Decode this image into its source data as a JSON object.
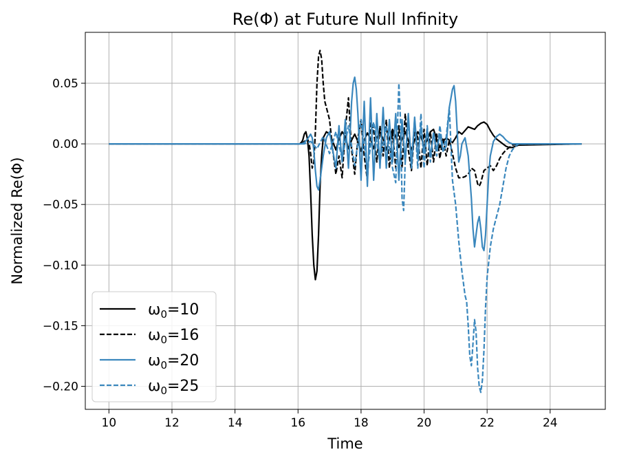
{
  "chart_data": {
    "type": "line",
    "title": "Re(Φ) at Future Null Infinity",
    "xlabel": "Time",
    "ylabel": "Normalized Re(Φ)",
    "xlim": [
      9.25,
      25.75
    ],
    "ylim": [
      -0.219,
      0.092
    ],
    "grid": true,
    "legend_placement": "lower-left",
    "x_ticks": [
      10,
      12,
      14,
      16,
      18,
      20,
      22,
      24
    ],
    "x_tick_labels": [
      "10",
      "12",
      "14",
      "16",
      "18",
      "20",
      "22",
      "24"
    ],
    "y_ticks": [
      0.05,
      0.0,
      -0.05,
      -0.1,
      -0.15,
      -0.2
    ],
    "y_tick_labels": [
      "0.05",
      "0.00",
      "−0.05",
      "−0.10",
      "−0.15",
      "−0.20"
    ],
    "series": [
      {
        "name": "ω₀=10",
        "legend_main": "ω",
        "legend_sub": "0",
        "legend_rest": "=10",
        "color": "#000000",
        "dash": "solid",
        "x": [
          10,
          16.0,
          16.05,
          16.1,
          16.15,
          16.2,
          16.25,
          16.3,
          16.35,
          16.4,
          16.45,
          16.5,
          16.55,
          16.6,
          16.65,
          16.7,
          16.75,
          16.8,
          16.9,
          17.0,
          17.1,
          17.2,
          17.3,
          17.4,
          17.5,
          17.6,
          17.7,
          17.8,
          17.9,
          18.0,
          18.1,
          18.2,
          18.3,
          18.4,
          18.5,
          18.6,
          18.7,
          18.8,
          18.9,
          19.0,
          19.1,
          19.2,
          19.3,
          19.4,
          19.5,
          19.6,
          19.7,
          19.8,
          19.9,
          20.0,
          20.1,
          20.2,
          20.3,
          20.4,
          20.5,
          20.6,
          20.7,
          20.8,
          20.9,
          21.0,
          21.1,
          21.2,
          21.3,
          21.4,
          21.5,
          21.6,
          21.7,
          21.8,
          21.9,
          22.0,
          22.1,
          22.2,
          22.3,
          22.4,
          22.5,
          22.6,
          22.7,
          22.8,
          22.9,
          23.0,
          25
        ],
        "y": [
          0,
          0,
          0.0,
          0.001,
          0.003,
          0.008,
          0.01,
          0.004,
          -0.01,
          -0.04,
          -0.075,
          -0.1,
          -0.112,
          -0.105,
          -0.075,
          -0.035,
          -0.01,
          0.005,
          0.01,
          0.008,
          0.002,
          -0.005,
          0.004,
          0.01,
          0.006,
          -0.004,
          0.003,
          0.008,
          0.002,
          -0.006,
          0.003,
          0.009,
          0.004,
          -0.004,
          0.005,
          0.01,
          0.004,
          -0.005,
          0.004,
          0.012,
          0.006,
          -0.003,
          0.004,
          0.01,
          0.003,
          -0.005,
          0.003,
          0.01,
          0.006,
          -0.002,
          0.003,
          0.01,
          0.012,
          0.004,
          -0.003,
          0.002,
          0.005,
          0.003,
          0.001,
          0.005,
          0.01,
          0.008,
          0.011,
          0.014,
          0.013,
          0.012,
          0.015,
          0.017,
          0.018,
          0.016,
          0.011,
          0.007,
          0.004,
          0.002,
          0.0,
          -0.002,
          -0.003,
          -0.003,
          -0.002,
          -0.001,
          0
        ]
      },
      {
        "name": "ω₀=16",
        "legend_main": "ω",
        "legend_sub": "0",
        "legend_rest": "=16",
        "color": "#000000",
        "dash": "dashed",
        "x": [
          10,
          16.0,
          16.1,
          16.2,
          16.3,
          16.35,
          16.4,
          16.45,
          16.5,
          16.55,
          16.6,
          16.65,
          16.7,
          16.75,
          16.8,
          16.85,
          16.9,
          17.0,
          17.1,
          17.2,
          17.3,
          17.4,
          17.5,
          17.6,
          17.7,
          17.8,
          17.9,
          18.0,
          18.1,
          18.2,
          18.3,
          18.4,
          18.5,
          18.6,
          18.7,
          18.8,
          18.9,
          19.0,
          19.1,
          19.2,
          19.3,
          19.4,
          19.5,
          19.6,
          19.7,
          19.8,
          19.9,
          20.0,
          20.1,
          20.2,
          20.3,
          20.4,
          20.5,
          20.6,
          20.7,
          20.8,
          20.9,
          21.0,
          21.1,
          21.2,
          21.3,
          21.4,
          21.5,
          21.6,
          21.7,
          21.75,
          21.8,
          21.9,
          22.0,
          22.1,
          22.2,
          22.3,
          22.4,
          22.5,
          22.6,
          22.7,
          22.8,
          22.9,
          23.0,
          25
        ],
        "y": [
          0,
          0,
          0.0,
          0.002,
          0.004,
          0.001,
          -0.008,
          -0.02,
          -0.015,
          0.01,
          0.05,
          0.072,
          0.077,
          0.07,
          0.05,
          0.035,
          0.03,
          0.02,
          -0.005,
          -0.025,
          -0.01,
          -0.028,
          0.012,
          0.038,
          -0.005,
          -0.025,
          0.005,
          0.02,
          -0.01,
          -0.03,
          0.018,
          0.012,
          -0.015,
          0.015,
          -0.01,
          0.02,
          -0.02,
          0.01,
          -0.02,
          0.015,
          -0.02,
          0.025,
          -0.005,
          -0.022,
          0.012,
          0.005,
          -0.02,
          0.012,
          -0.018,
          0.01,
          -0.015,
          0.008,
          -0.012,
          0.005,
          -0.01,
          0.003,
          -0.008,
          -0.02,
          -0.028,
          -0.028,
          -0.027,
          -0.025,
          -0.02,
          -0.022,
          -0.033,
          -0.035,
          -0.032,
          -0.022,
          -0.02,
          -0.018,
          -0.022,
          -0.018,
          -0.012,
          -0.008,
          -0.005,
          -0.003,
          -0.001,
          -0.0005,
          0.0,
          0
        ]
      },
      {
        "name": "ω₀=20",
        "legend_main": "ω",
        "legend_sub": "0",
        "legend_rest": "=20",
        "color": "#3a87bd",
        "dash": "solid",
        "x": [
          10,
          16.0,
          16.1,
          16.2,
          16.3,
          16.4,
          16.45,
          16.5,
          16.55,
          16.6,
          16.65,
          16.7,
          16.8,
          16.9,
          17.0,
          17.1,
          17.2,
          17.3,
          17.4,
          17.5,
          17.6,
          17.7,
          17.75,
          17.8,
          17.85,
          17.9,
          18.0,
          18.1,
          18.2,
          18.3,
          18.4,
          18.5,
          18.6,
          18.7,
          18.8,
          18.9,
          19.0,
          19.1,
          19.2,
          19.3,
          19.4,
          19.5,
          19.6,
          19.7,
          19.8,
          19.9,
          20.0,
          20.1,
          20.2,
          20.3,
          20.4,
          20.5,
          20.6,
          20.7,
          20.8,
          20.9,
          20.95,
          21.0,
          21.05,
          21.1,
          21.15,
          21.2,
          21.3,
          21.4,
          21.5,
          21.55,
          21.6,
          21.65,
          21.7,
          21.75,
          21.8,
          21.85,
          21.9,
          21.95,
          22.0,
          22.05,
          22.1,
          22.2,
          22.3,
          22.4,
          22.5,
          22.6,
          22.7,
          22.8,
          22.9,
          23.0,
          25
        ],
        "y": [
          0,
          0,
          0.0,
          0.001,
          0.004,
          0.008,
          0.005,
          -0.005,
          -0.022,
          -0.035,
          -0.038,
          -0.03,
          -0.01,
          0.005,
          0.01,
          -0.005,
          -0.02,
          0.015,
          -0.015,
          0.02,
          -0.02,
          0.035,
          0.05,
          0.055,
          0.045,
          0.025,
          -0.03,
          0.035,
          -0.035,
          0.038,
          -0.03,
          0.025,
          -0.02,
          0.03,
          -0.02,
          0.02,
          -0.015,
          0.025,
          -0.03,
          0.02,
          -0.015,
          0.025,
          -0.02,
          0.022,
          -0.012,
          0.015,
          -0.008,
          0.012,
          -0.01,
          0.008,
          -0.005,
          0.008,
          -0.006,
          -0.002,
          0.03,
          0.045,
          0.048,
          0.035,
          0.01,
          -0.015,
          -0.01,
          0.0,
          0.005,
          -0.01,
          -0.045,
          -0.07,
          -0.085,
          -0.075,
          -0.065,
          -0.06,
          -0.07,
          -0.085,
          -0.088,
          -0.075,
          -0.05,
          -0.025,
          -0.01,
          0.002,
          0.006,
          0.008,
          0.006,
          0.003,
          0.001,
          0.0,
          0.0,
          0.0,
          0
        ]
      },
      {
        "name": "ω₀=25",
        "legend_main": "ω",
        "legend_sub": "0",
        "legend_rest": "=25",
        "color": "#3a87bd",
        "dash": "dashed",
        "x": [
          10,
          16.0,
          16.2,
          16.4,
          16.6,
          16.8,
          17.0,
          17.2,
          17.4,
          17.6,
          17.8,
          18.0,
          18.2,
          18.4,
          18.6,
          18.8,
          19.0,
          19.1,
          19.15,
          19.2,
          19.25,
          19.3,
          19.35,
          19.4,
          19.5,
          19.6,
          19.7,
          19.8,
          19.9,
          20.0,
          20.1,
          20.2,
          20.3,
          20.4,
          20.5,
          20.6,
          20.7,
          20.8,
          20.9,
          21.0,
          21.1,
          21.2,
          21.3,
          21.35,
          21.4,
          21.45,
          21.5,
          21.55,
          21.6,
          21.65,
          21.7,
          21.75,
          21.8,
          21.85,
          21.9,
          21.95,
          22.0,
          22.1,
          22.2,
          22.3,
          22.4,
          22.5,
          22.6,
          22.7,
          22.8,
          22.9,
          23.0,
          25
        ],
        "y": [
          0,
          0,
          0.0,
          0.002,
          -0.004,
          0.006,
          -0.008,
          0.01,
          -0.012,
          0.015,
          -0.018,
          0.02,
          -0.022,
          0.018,
          -0.015,
          0.015,
          -0.02,
          -0.032,
          0.01,
          0.05,
          0.02,
          -0.045,
          -0.055,
          -0.015,
          0.02,
          -0.015,
          0.02,
          -0.02,
          0.025,
          -0.02,
          0.015,
          -0.015,
          0.01,
          -0.01,
          0.015,
          -0.005,
          0.005,
          0.03,
          -0.03,
          -0.05,
          -0.08,
          -0.105,
          -0.125,
          -0.13,
          -0.15,
          -0.175,
          -0.183,
          -0.165,
          -0.145,
          -0.155,
          -0.185,
          -0.2,
          -0.205,
          -0.195,
          -0.17,
          -0.135,
          -0.11,
          -0.085,
          -0.07,
          -0.06,
          -0.05,
          -0.035,
          -0.02,
          -0.01,
          -0.005,
          -0.002,
          0.0,
          0
        ]
      }
    ]
  }
}
